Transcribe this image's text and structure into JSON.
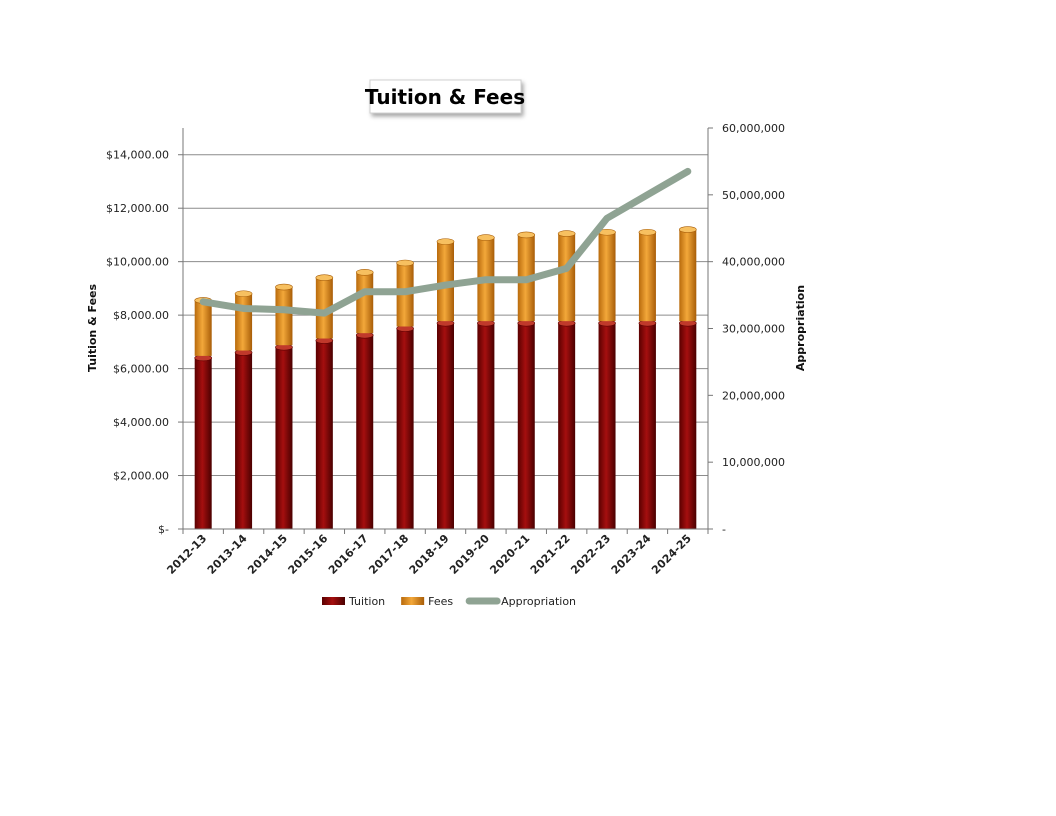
{
  "chart_data": {
    "type": "bar",
    "stacked": true,
    "title": "Tuition & Fees",
    "ylabel": "Tuition & Fees",
    "y2label": "Appropriation",
    "ylim": [
      0,
      15000
    ],
    "y2lim": [
      0,
      60000000
    ],
    "y_ticks": [
      0,
      2000,
      4000,
      6000,
      8000,
      10000,
      12000,
      14000
    ],
    "y_tick_labels": [
      "$-",
      "$2,000.00",
      "$4,000.00",
      "$6,000.00",
      "$8,000.00",
      "$10,000.00",
      "$12,000.00",
      "$14,000.00"
    ],
    "y2_ticks": [
      0,
      10000000,
      20000000,
      30000000,
      40000000,
      50000000,
      60000000
    ],
    "y2_tick_labels": [
      "-",
      "10,000,000",
      "20,000,000",
      "30,000,000",
      "40,000,000",
      "50,000,000",
      "60,000,000"
    ],
    "categories": [
      "2012-13",
      "2013-14",
      "2014-15",
      "2015-16",
      "2016-17",
      "2017-18",
      "2018-19",
      "2019-20",
      "2020-21",
      "2021-22",
      "2022-23",
      "2023-24",
      "2024-25"
    ],
    "series": [
      {
        "name": "Tuition",
        "type": "bar",
        "axis": "left",
        "color": "#8b0000",
        "values": [
          6400,
          6600,
          6800,
          7050,
          7250,
          7500,
          7700,
          7700,
          7700,
          7700,
          7700,
          7700,
          7700
        ]
      },
      {
        "name": "Fees",
        "type": "bar",
        "axis": "left",
        "color": "#e8921e",
        "values": [
          2150,
          2200,
          2250,
          2350,
          2350,
          2450,
          3050,
          3200,
          3300,
          3350,
          3400,
          3400,
          3500
        ]
      },
      {
        "name": "Appropriation",
        "type": "line",
        "axis": "right",
        "color": "#8fa393",
        "values": [
          34000000,
          33000000,
          32800000,
          32300000,
          35500000,
          35500000,
          36500000,
          37300000,
          37300000,
          39000000,
          46500000,
          50000000,
          53500000
        ]
      }
    ],
    "legend": "bottom",
    "grid": true
  }
}
